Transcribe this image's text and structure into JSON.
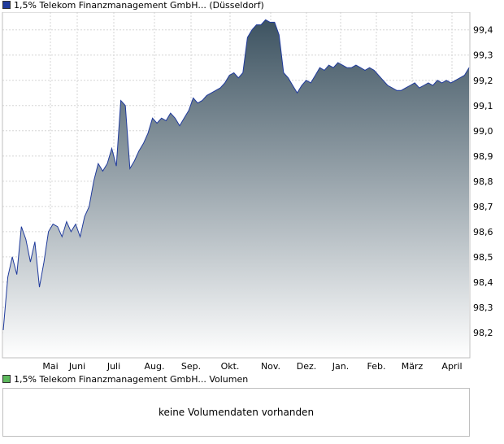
{
  "legend": {
    "price_label": "1,5% Telekom Finanzmanagement GmbH... (Düsseldorf)",
    "price_color": "#1f3a9c",
    "volume_label": "1,5% Telekom Finanzmanagement GmbH... Volumen",
    "volume_color": "#5cb85c"
  },
  "volume": {
    "message": "keine Volumendaten vorhanden"
  },
  "chart_data": {
    "type": "area",
    "title": "",
    "xlabel": "",
    "ylabel": "",
    "ylim": [
      98.1,
      99.47
    ],
    "y_ticks": [
      "98,2",
      "98,3",
      "98,4",
      "98,5",
      "98,6",
      "98,7",
      "98,8",
      "98,9",
      "99,0",
      "99,1",
      "99,2",
      "99,3",
      "99,4"
    ],
    "x_ticks": [
      "Mai",
      "Juni",
      "Juli",
      "Aug.",
      "Sep.",
      "Okt.",
      "Nov.",
      "Dez.",
      "Jan.",
      "Feb.",
      "März",
      "April"
    ],
    "line_color": "#1f3a9c",
    "fill_top_color": "#3d5361",
    "fill_bottom_color": "#ffffff",
    "grid": true,
    "series": [
      {
        "name": "1,5% Telekom Finanzmanagement GmbH... (Düsseldorf)",
        "x": [
          "Apr 16",
          "Apr 18",
          "Apr 21",
          "Apr 24",
          "Apr 27",
          "Apr 30",
          "May 3",
          "May 6",
          "May 9",
          "May 11",
          "May 14",
          "May 17",
          "May 19",
          "May 22",
          "May 25",
          "May 28",
          "May 31",
          "Jun 3",
          "Jun 6",
          "Jun 9",
          "Jun 12",
          "Jun 15",
          "Jun 18",
          "Jun 21",
          "Jun 24",
          "Jun 27",
          "Jun 30",
          "Jul 3",
          "Jul 6",
          "Jul 9",
          "Jul 12",
          "Jul 15",
          "Jul 18",
          "Jul 21",
          "Jul 24",
          "Jul 27",
          "Jul 30",
          "Aug 1",
          "Aug 3",
          "Aug 5",
          "Aug 8",
          "Aug 10",
          "Aug 13",
          "Aug 16",
          "Aug 20",
          "Aug 24",
          "Aug 28",
          "Sep 2",
          "Sep 6",
          "Sep 10",
          "Sep 14",
          "Sep 18",
          "Sep 22",
          "Sep 26",
          "Sep 30",
          "Oct 4",
          "Oct 8",
          "Oct 12",
          "Oct 16",
          "Oct 20",
          "Oct 24",
          "Oct 28",
          "Nov 1",
          "Nov 5",
          "Nov 9",
          "Nov 13",
          "Nov 17",
          "Nov 21",
          "Nov 25",
          "Nov 29",
          "Dec 3",
          "Dec 7",
          "Dec 11",
          "Dec 15",
          "Dec 19",
          "Dec 23",
          "Dec 27",
          "Dec 31",
          "Jan 4",
          "Jan 8",
          "Jan 12",
          "Jan 16",
          "Jan 20",
          "Jan 24",
          "Jan 28",
          "Feb 1",
          "Feb 5",
          "Feb 9",
          "Feb 13",
          "Feb 17",
          "Feb 21",
          "Feb 25",
          "Mar 1",
          "Mar 5",
          "Mar 9",
          "Mar 13",
          "Mar 17",
          "Mar 21",
          "Mar 25",
          "Mar 29",
          "Apr 2",
          "Apr 6",
          "Apr 10",
          "Apr 14"
        ],
        "y": [
          98.21,
          98.42,
          98.5,
          98.43,
          98.62,
          98.57,
          98.48,
          98.56,
          98.38,
          98.48,
          98.6,
          98.63,
          98.62,
          98.58,
          98.64,
          98.6,
          98.63,
          98.58,
          98.66,
          98.7,
          98.8,
          98.87,
          98.84,
          98.87,
          98.93,
          98.86,
          99.12,
          99.1,
          98.85,
          98.88,
          98.92,
          98.95,
          98.99,
          99.05,
          99.03,
          99.05,
          99.04,
          99.07,
          99.05,
          99.02,
          99.05,
          99.08,
          99.13,
          99.11,
          99.12,
          99.14,
          99.15,
          99.16,
          99.17,
          99.19,
          99.22,
          99.23,
          99.21,
          99.23,
          99.37,
          99.4,
          99.42,
          99.42,
          99.44,
          99.43,
          99.43,
          99.38,
          99.23,
          99.21,
          99.18,
          99.15,
          99.18,
          99.2,
          99.19,
          99.22,
          99.25,
          99.24,
          99.26,
          99.25,
          99.27,
          99.26,
          99.25,
          99.25,
          99.26,
          99.25,
          99.24,
          99.25,
          99.24,
          99.22,
          99.2,
          99.18,
          99.17,
          99.16,
          99.16,
          99.17,
          99.18,
          99.19,
          99.17,
          99.18,
          99.19,
          99.18,
          99.2,
          99.19,
          99.2,
          99.19,
          99.2,
          99.21,
          99.22,
          99.25
        ]
      }
    ]
  }
}
